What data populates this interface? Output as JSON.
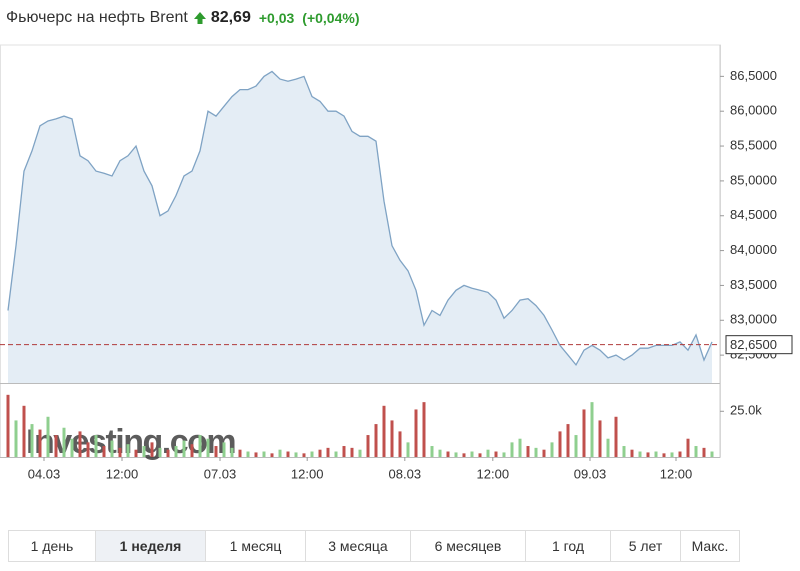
{
  "header": {
    "title": "Фьючерс на нефть Brent",
    "price": "82,69",
    "change": "+0,03",
    "change_pct": "(+0,04%)"
  },
  "chart_data": [
    {
      "type": "area",
      "line_color": "#7fa3c4",
      "fill_color": "#e4edf5",
      "x": [
        0,
        1,
        2,
        3,
        4,
        5,
        6,
        7,
        8,
        9,
        10,
        11,
        12,
        13,
        14,
        15,
        16,
        17,
        18,
        19,
        20,
        21,
        22,
        23,
        24,
        25,
        26,
        27,
        28,
        29,
        30,
        31,
        32,
        33,
        34,
        35,
        36,
        37,
        38,
        39,
        40,
        41,
        42,
        43,
        44,
        45,
        46,
        47,
        48,
        49,
        50,
        51,
        52,
        53,
        54,
        55,
        56,
        57,
        58,
        59,
        60,
        61,
        62,
        63,
        64,
        65,
        66,
        67,
        68,
        69,
        70,
        71,
        72,
        73,
        74,
        75,
        76,
        77,
        78,
        79,
        80,
        81,
        82,
        83,
        84,
        85,
        86,
        87,
        88
      ],
      "values": [
        83.14,
        84.07,
        85.14,
        85.43,
        85.79,
        85.86,
        85.89,
        85.93,
        85.89,
        85.36,
        85.29,
        85.14,
        85.11,
        85.07,
        85.29,
        85.36,
        85.5,
        85.14,
        84.93,
        84.5,
        84.57,
        84.79,
        85.07,
        85.14,
        85.43,
        86.0,
        85.93,
        86.07,
        86.21,
        86.31,
        86.31,
        86.36,
        86.5,
        86.57,
        86.46,
        86.43,
        86.46,
        86.5,
        86.21,
        86.14,
        86.0,
        86.0,
        85.93,
        85.71,
        85.64,
        85.64,
        85.57,
        84.71,
        84.07,
        83.86,
        83.71,
        83.43,
        82.93,
        83.14,
        83.07,
        83.29,
        83.43,
        83.5,
        83.46,
        83.43,
        83.4,
        83.29,
        83.03,
        83.14,
        83.29,
        83.31,
        83.21,
        83.07,
        82.86,
        82.64,
        82.5,
        82.36,
        82.57,
        82.64,
        82.57,
        82.46,
        82.5,
        82.43,
        82.5,
        82.6,
        82.6,
        82.64,
        82.64,
        82.64,
        82.69,
        82.57,
        82.79,
        82.43,
        82.69
      ],
      "xlim": [
        0,
        88
      ],
      "ylim": [
        82.1,
        86.95
      ],
      "xticks": [
        {
          "value": 4.5,
          "label": "04.03"
        },
        {
          "value": 14.25,
          "label": "12:00"
        },
        {
          "value": 26.5,
          "label": "07.03"
        },
        {
          "value": 37.4,
          "label": "12:00"
        },
        {
          "value": 49.6,
          "label": "08.03"
        },
        {
          "value": 60.6,
          "label": "12:00"
        },
        {
          "value": 72.75,
          "label": "09.03"
        },
        {
          "value": 83.5,
          "label": "12:00"
        }
      ],
      "yticks": [
        {
          "value": 82.5,
          "label": "82,5000"
        },
        {
          "value": 83,
          "label": "83,0000"
        },
        {
          "value": 83.5,
          "label": "83,5000"
        },
        {
          "value": 84,
          "label": "84,0000"
        },
        {
          "value": 84.5,
          "label": "84,5000"
        },
        {
          "value": 85,
          "label": "85,0000"
        },
        {
          "value": 85.5,
          "label": "85,5000"
        },
        {
          "value": 86,
          "label": "86,0000"
        },
        {
          "value": 86.5,
          "label": "86,5000"
        }
      ],
      "reference_line": {
        "value": 82.65,
        "label": "82,6500",
        "color": "#b03a3a"
      },
      "watermark": "Investing.com"
    },
    {
      "type": "bar",
      "values": [
        34000,
        20000,
        28000,
        18000,
        15000,
        22000,
        12000,
        16000,
        10000,
        14000,
        8000,
        12000,
        6000,
        9000,
        5000,
        7000,
        4000,
        6000,
        8000,
        5000,
        4000,
        6000,
        9000,
        7000,
        12000,
        10000,
        6000,
        8000,
        5000,
        4000,
        3000,
        2500,
        3000,
        2000,
        4000,
        3000,
        2500,
        2000,
        3000,
        4000,
        5000,
        3000,
        6000,
        5000,
        4000,
        12000,
        18000,
        28000,
        20000,
        14000,
        8000,
        26000,
        30000,
        6000,
        4000,
        3000,
        2500,
        2000,
        3000,
        2000,
        4000,
        3000,
        2500,
        8000,
        10000,
        6000,
        5000,
        4000,
        8000,
        14000,
        18000,
        12000,
        26000,
        30000,
        20000,
        10000,
        22000,
        6000,
        4000,
        3000,
        2500,
        3000,
        2000,
        2500,
        3000,
        10000,
        6000,
        5000,
        3000
      ],
      "colors": [
        "#c0504d",
        "#8fcf8f",
        "#c0504d",
        "#8fcf8f",
        "#c0504d",
        "#8fcf8f",
        "#c0504d",
        "#8fcf8f",
        "#8fcf8f",
        "#c0504d",
        "#c0504d",
        "#8fcf8f",
        "#c0504d",
        "#8fcf8f",
        "#c0504d",
        "#8fcf8f",
        "#c0504d",
        "#8fcf8f",
        "#c0504d",
        "#8fcf8f",
        "#c0504d",
        "#8fcf8f",
        "#8fcf8f",
        "#c0504d",
        "#8fcf8f",
        "#8fcf8f",
        "#c0504d",
        "#8fcf8f",
        "#8fcf8f",
        "#c0504d",
        "#8fcf8f",
        "#c0504d",
        "#8fcf8f",
        "#c0504d",
        "#8fcf8f",
        "#c0504d",
        "#8fcf8f",
        "#c0504d",
        "#8fcf8f",
        "#c0504d",
        "#c0504d",
        "#8fcf8f",
        "#c0504d",
        "#c0504d",
        "#8fcf8f",
        "#c0504d",
        "#c0504d",
        "#c0504d",
        "#c0504d",
        "#c0504d",
        "#8fcf8f",
        "#c0504d",
        "#c0504d",
        "#8fcf8f",
        "#8fcf8f",
        "#c0504d",
        "#8fcf8f",
        "#c0504d",
        "#8fcf8f",
        "#c0504d",
        "#8fcf8f",
        "#c0504d",
        "#8fcf8f",
        "#8fcf8f",
        "#8fcf8f",
        "#c0504d",
        "#8fcf8f",
        "#c0504d",
        "#8fcf8f",
        "#c0504d",
        "#c0504d",
        "#8fcf8f",
        "#c0504d",
        "#8fcf8f",
        "#c0504d",
        "#8fcf8f",
        "#c0504d",
        "#8fcf8f",
        "#c0504d",
        "#8fcf8f",
        "#c0504d",
        "#8fcf8f",
        "#c0504d",
        "#8fcf8f",
        "#c0504d",
        "#c0504d",
        "#8fcf8f",
        "#c0504d",
        "#8fcf8f"
      ],
      "ylim": [
        0,
        35000
      ],
      "yticks": [
        {
          "value": 25000,
          "label": "25.0k"
        }
      ]
    }
  ],
  "periods": {
    "items": [
      "1 день",
      "1 неделя",
      "1 месяц",
      "3 месяца",
      "6 месяцев",
      "1 год",
      "5 лет",
      "Макс."
    ],
    "active": 1
  }
}
